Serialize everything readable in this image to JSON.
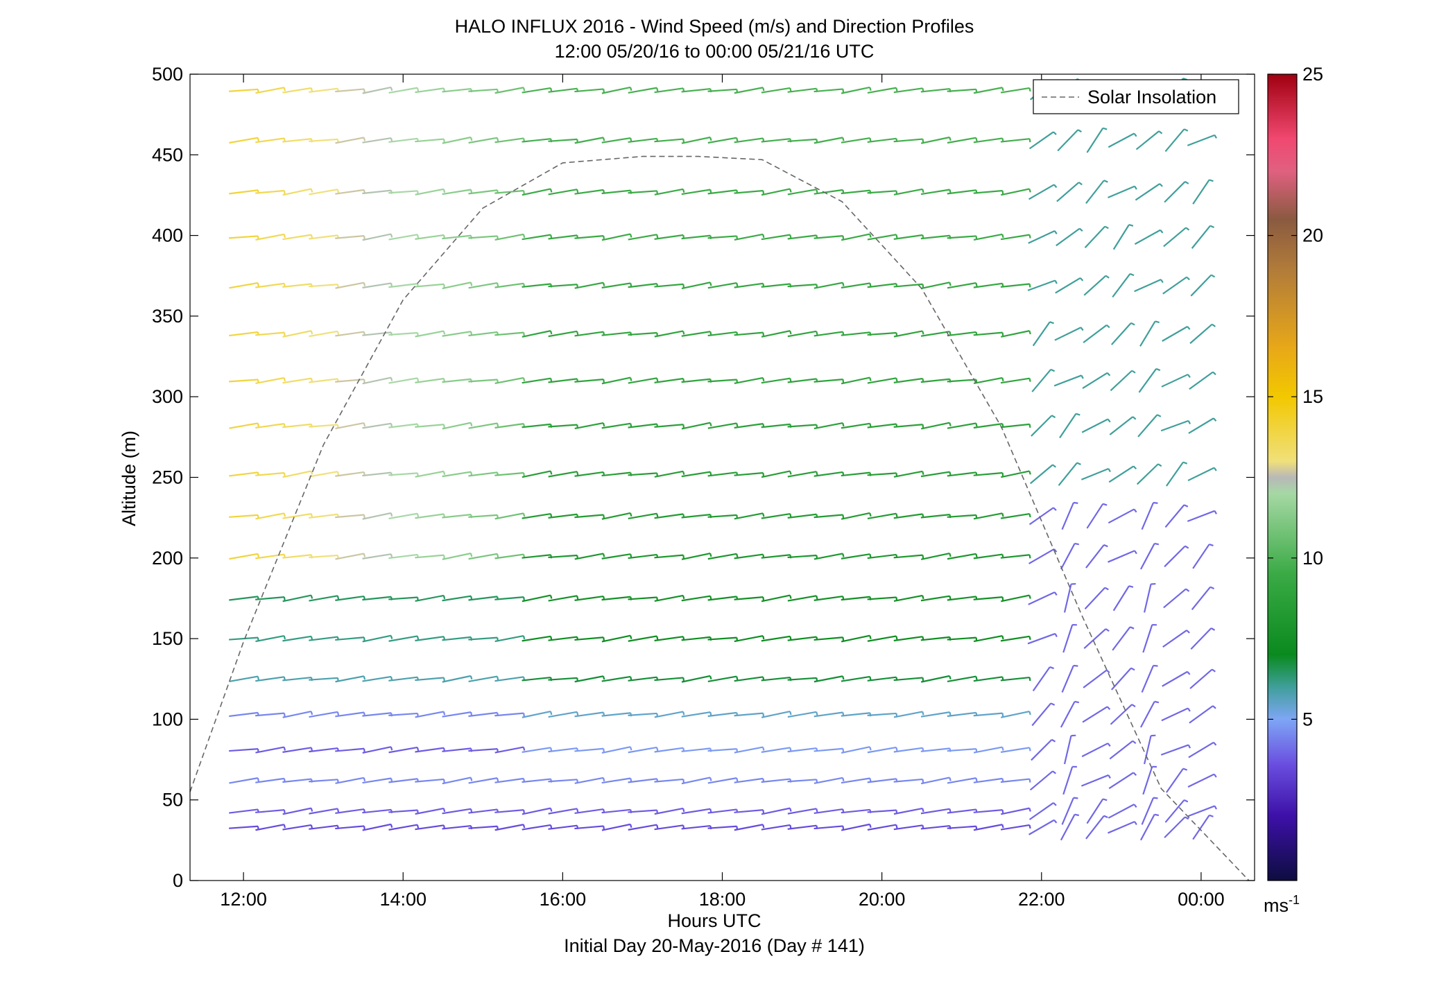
{
  "chart_data": {
    "type": "wind-barb-profile",
    "title": "HALO INFLUX 2016 - Wind Speed (m/s) and Direction Profiles",
    "subtitle": "12:00 05/20/16 to 00:00 05/21/16  UTC",
    "xlabel": "Hours UTC",
    "xlabel2": "Initial Day 20-May-2016 (Day # 141)",
    "ylabel": "Altitude (m)",
    "xlim": [
      11.33,
      24.67
    ],
    "ylim": [
      0,
      500
    ],
    "x_ticks": [
      12,
      14,
      16,
      18,
      20,
      22,
      24
    ],
    "x_tick_labels": [
      "12:00",
      "14:00",
      "16:00",
      "18:00",
      "20:00",
      "22:00",
      "00:00"
    ],
    "y_ticks": [
      0,
      50,
      100,
      150,
      200,
      250,
      300,
      350,
      400,
      450,
      500
    ],
    "y_tick_labels": [
      "0",
      "50",
      "100",
      "150",
      "200",
      "250",
      "300",
      "350",
      "400",
      "450",
      "500"
    ],
    "legend": {
      "label": "Solar Insolation",
      "position": "top-right"
    },
    "colorbar": {
      "range": [
        0,
        25
      ],
      "ticks": [
        5,
        10,
        15,
        20,
        25
      ],
      "tick_labels": [
        "5",
        "10",
        "15",
        "20",
        "25"
      ],
      "unit_base": "ms",
      "unit_exp": "-1",
      "stops": [
        {
          "v": 0,
          "c": "#0d0d40"
        },
        {
          "v": 2,
          "c": "#3d10a8"
        },
        {
          "v": 3.6,
          "c": "#6a4ee0"
        },
        {
          "v": 5,
          "c": "#7ea6f5"
        },
        {
          "v": 6,
          "c": "#3f9f9a"
        },
        {
          "v": 7,
          "c": "#0a8a1e"
        },
        {
          "v": 9.5,
          "c": "#3aaa45"
        },
        {
          "v": 12,
          "c": "#a6d8a4"
        },
        {
          "v": 12.5,
          "c": "#b8b8b8"
        },
        {
          "v": 13,
          "c": "#f0e07a"
        },
        {
          "v": 15,
          "c": "#f2c800"
        },
        {
          "v": 16.5,
          "c": "#e8a818"
        },
        {
          "v": 19,
          "c": "#b07a3a"
        },
        {
          "v": 20.5,
          "c": "#8a5a40"
        },
        {
          "v": 22,
          "c": "#e06080"
        },
        {
          "v": 23,
          "c": "#f04870"
        },
        {
          "v": 25,
          "c": "#a00010"
        }
      ]
    },
    "solar_insolation": {
      "peak_hour": 17.7,
      "peak_altitude_m": 449,
      "points": [
        [
          11.33,
          55
        ],
        [
          12.0,
          148
        ],
        [
          13.0,
          270
        ],
        [
          14.0,
          360
        ],
        [
          15.0,
          417
        ],
        [
          16.0,
          445
        ],
        [
          17.0,
          449
        ],
        [
          17.7,
          449
        ],
        [
          18.5,
          447
        ],
        [
          19.5,
          421
        ],
        [
          20.5,
          367
        ],
        [
          21.5,
          281
        ],
        [
          22.5,
          165
        ],
        [
          23.5,
          57
        ],
        [
          24.6,
          0
        ]
      ]
    },
    "wind_profiles": {
      "hours": [
        12.0,
        12.33,
        12.67,
        13.0,
        13.33,
        13.67,
        14.0,
        14.33,
        14.67,
        15.0,
        15.33,
        15.67,
        16.0,
        16.33,
        16.67,
        17.0,
        17.33,
        17.67,
        18.0,
        18.33,
        18.67,
        19.0,
        19.33,
        19.67,
        20.0,
        20.33,
        20.67,
        21.0,
        21.33,
        21.67,
        22.0,
        22.33,
        22.67,
        23.0,
        23.33,
        23.67,
        24.0
      ],
      "altitudes_m": [
        33,
        43,
        62,
        81,
        103,
        125,
        150,
        175,
        201,
        226,
        252,
        282,
        310,
        339,
        369,
        399,
        427,
        459,
        490
      ],
      "typical_speed_ms_by_altitude": [
        3.5,
        3.8,
        4.5,
        4.8,
        5.5,
        6.8,
        7.2,
        7.5,
        8.0,
        8.3,
        8.5,
        8.7,
        9.0,
        9.0,
        9.2,
        9.5,
        9.5,
        9.7,
        9.8
      ],
      "early_upper_speed_ms": 14,
      "late_speed_ms": 4
    }
  }
}
